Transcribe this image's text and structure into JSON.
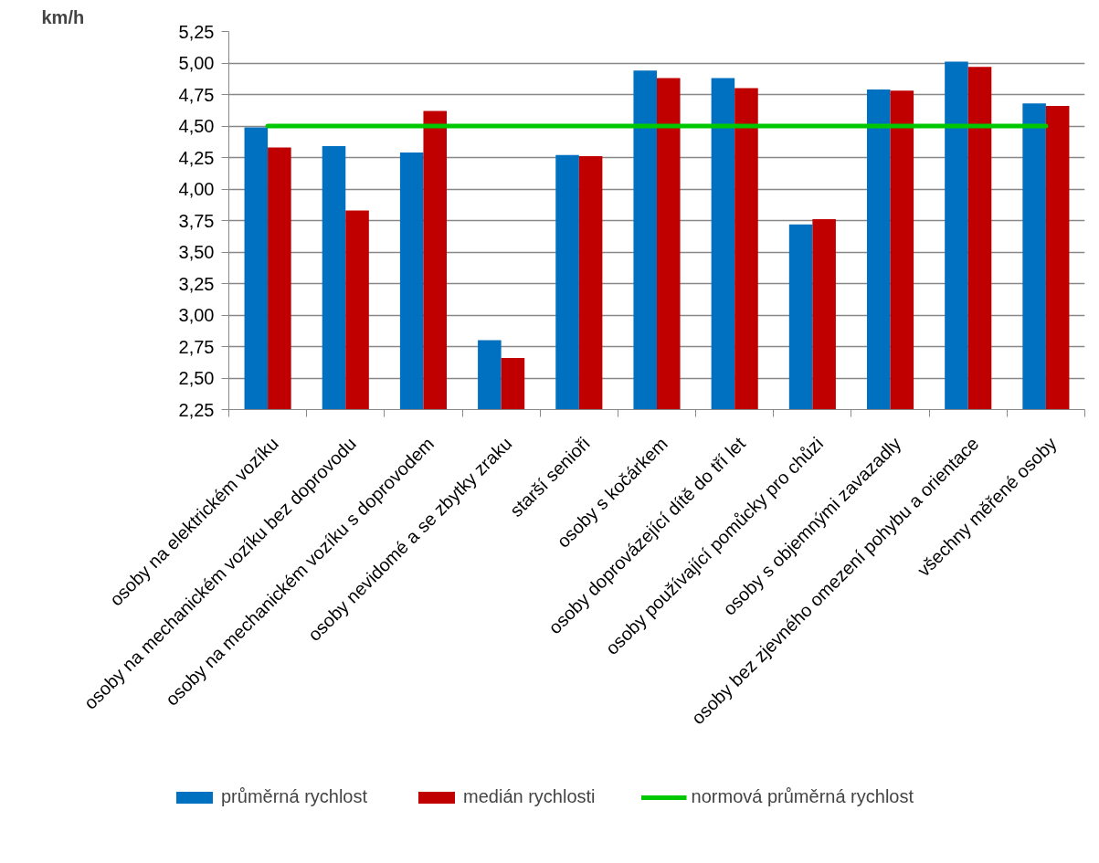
{
  "chart_data": {
    "type": "bar",
    "ylabel": "km/h",
    "categories": [
      "osoby na elektrickém vozíku",
      "osoby na mechanickém vozíku bez doprovodu",
      "osoby na mechanickém vozíku s doprovodem",
      "osoby nevidomé a se zbytky zraku",
      "starší senioři",
      "osoby s kočárkem",
      "osoby doprovázející dítě do tří let",
      "osoby používající pomůcky pro chůzi",
      "osoby s objemnými zavazadly",
      "osoby bez zjevného omezení pohybu a orientace",
      "všechny měřené osoby"
    ],
    "series": [
      {
        "name": "průměrná rychlost",
        "color": "#0070c0",
        "values": [
          4.49,
          4.34,
          4.29,
          2.8,
          4.27,
          4.94,
          4.88,
          3.72,
          4.79,
          5.01,
          4.68
        ]
      },
      {
        "name": "medián rychlosti",
        "color": "#c00000",
        "values": [
          4.33,
          3.83,
          4.62,
          2.66,
          4.26,
          4.88,
          4.8,
          3.76,
          4.78,
          4.97,
          4.66
        ]
      },
      {
        "name": "normová průměrná rychlost",
        "color": "#00c800",
        "type": "line",
        "values": [
          4.5,
          4.5,
          4.5,
          4.5,
          4.5,
          4.5,
          4.5,
          4.5,
          4.5,
          4.5,
          4.5
        ]
      }
    ],
    "ylim": [
      2.25,
      5.25
    ],
    "yticks": [
      {
        "value": 2.25,
        "label": "2,25"
      },
      {
        "value": 2.5,
        "label": "2,50"
      },
      {
        "value": 2.75,
        "label": "2,75"
      },
      {
        "value": 3.0,
        "label": "3,00"
      },
      {
        "value": 3.25,
        "label": "3,25"
      },
      {
        "value": 3.5,
        "label": "3,50"
      },
      {
        "value": 3.75,
        "label": "3,75"
      },
      {
        "value": 4.0,
        "label": "4,00"
      },
      {
        "value": 4.25,
        "label": "4,25"
      },
      {
        "value": 4.5,
        "label": "4,50"
      },
      {
        "value": 4.75,
        "label": "4,75"
      },
      {
        "value": 5.0,
        "label": "5,00"
      },
      {
        "value": 5.25,
        "label": "5,25"
      }
    ],
    "grid": "y",
    "legend": "bottom"
  }
}
